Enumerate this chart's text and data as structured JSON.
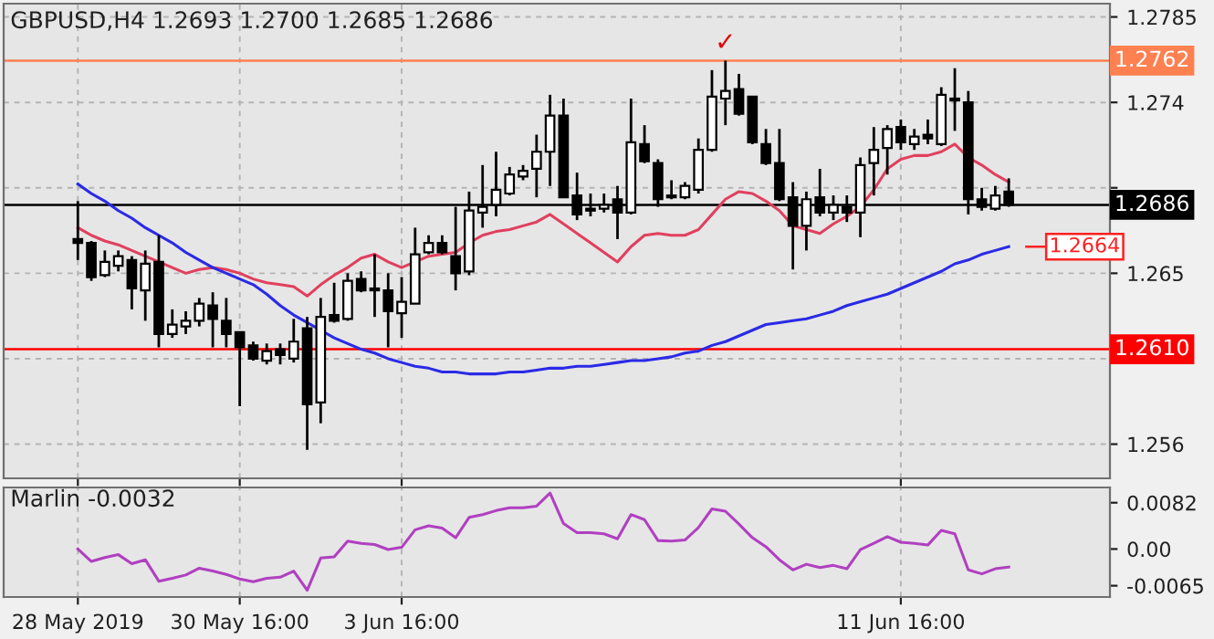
{
  "chart_data": [
    {
      "type": "candlestick",
      "title": "GBPUSD,H4 1.2693 1.2700 1.2685 1.2686",
      "categories": [
        null,
        null,
        null,
        null,
        null,
        null,
        null,
        null,
        null,
        null,
        null,
        null,
        null,
        null,
        null,
        null,
        null,
        null,
        null,
        null,
        null,
        null,
        null,
        null,
        null,
        null,
        null,
        null,
        null,
        null,
        null,
        null,
        null,
        null,
        null,
        null,
        null,
        null,
        null,
        null,
        null,
        null,
        null,
        null,
        null,
        null,
        null,
        null,
        null,
        null,
        null,
        null,
        null,
        null,
        null,
        null,
        null,
        null,
        null,
        null,
        null,
        null,
        null,
        null,
        null,
        null,
        null,
        null,
        null,
        null
      ],
      "ohlc": [
        [
          1.2668,
          1.2688,
          1.2657,
          1.2666
        ],
        [
          1.2666,
          1.2667,
          1.2646,
          1.2648
        ],
        [
          1.2649,
          1.2662,
          1.2648,
          1.2656
        ],
        [
          1.2654,
          1.2662,
          1.2651,
          1.2659
        ],
        [
          1.2657,
          1.2659,
          1.2631,
          1.2642
        ],
        [
          1.2641,
          1.2662,
          1.2625,
          1.2655
        ],
        [
          1.2656,
          1.267,
          1.2611,
          1.2618
        ],
        [
          1.2618,
          1.2631,
          1.2616,
          1.2623
        ],
        [
          1.2622,
          1.263,
          1.2618,
          1.2625
        ],
        [
          1.2625,
          1.2637,
          1.2622,
          1.2634
        ],
        [
          1.2633,
          1.264,
          1.2611,
          1.2626
        ],
        [
          1.2625,
          1.2637,
          1.2611,
          1.2618
        ],
        [
          1.2619,
          1.2619,
          1.258,
          1.2611
        ],
        [
          1.2612,
          1.2614,
          1.2604,
          1.2605
        ],
        [
          1.2604,
          1.2613,
          1.2602,
          1.2609
        ],
        [
          1.261,
          1.2613,
          1.2602,
          1.2607
        ],
        [
          1.2605,
          1.2626,
          1.2603,
          1.2614
        ],
        [
          1.2621,
          1.2627,
          1.2557,
          1.2581
        ],
        [
          1.2582,
          1.2637,
          1.2571,
          1.2627
        ],
        [
          1.2628,
          1.2645,
          1.2624,
          1.2625
        ],
        [
          1.2626,
          1.265,
          1.2625,
          1.2646
        ],
        [
          1.2647,
          1.2651,
          1.264,
          1.2641
        ],
        [
          1.2642,
          1.266,
          1.2627,
          1.2641
        ],
        [
          1.2641,
          1.265,
          1.2611,
          1.263
        ],
        [
          1.2629,
          1.2648,
          1.2616,
          1.2635
        ],
        [
          1.2634,
          1.2674,
          1.2634,
          1.266
        ],
        [
          1.2661,
          1.267,
          1.266,
          1.2666
        ],
        [
          1.2666,
          1.267,
          1.266,
          1.2661
        ],
        [
          1.2659,
          1.2685,
          1.2641,
          1.265
        ],
        [
          1.2651,
          1.2693,
          1.2649,
          1.2683
        ],
        [
          1.2682,
          1.2707,
          1.2674,
          1.2685
        ],
        [
          1.2686,
          1.2714,
          1.268,
          1.2694
        ],
        [
          1.2692,
          1.2706,
          1.2691,
          1.2702
        ],
        [
          1.2701,
          1.2707,
          1.2699,
          1.2704
        ],
        [
          1.2705,
          1.2723,
          1.269,
          1.2714
        ],
        [
          1.2714,
          1.2744,
          1.2696,
          1.2733
        ],
        [
          1.2733,
          1.2742,
          1.269,
          1.269
        ],
        [
          1.2691,
          1.2703,
          1.2678,
          1.2681
        ],
        [
          1.2684,
          1.2692,
          1.268,
          1.2683
        ],
        [
          1.2684,
          1.2692,
          1.2682,
          1.2686
        ],
        [
          1.2689,
          1.2696,
          1.2668,
          1.2682
        ],
        [
          1.2682,
          1.2742,
          1.2681,
          1.2719
        ],
        [
          1.2718,
          1.2728,
          1.2708,
          1.2709
        ],
        [
          1.2708,
          1.271,
          1.2685,
          1.2689
        ],
        [
          1.269,
          1.2699,
          1.2689,
          1.2691
        ],
        [
          1.269,
          1.2698,
          1.2689,
          1.2696
        ],
        [
          1.2694,
          1.2721,
          1.2692,
          1.2715
        ],
        [
          1.2715,
          1.2757,
          1.2714,
          1.2743
        ],
        [
          1.2742,
          1.2762,
          1.2728,
          1.2746
        ],
        [
          1.2747,
          1.2755,
          1.2733,
          1.2734
        ],
        [
          1.2743,
          1.2743,
          1.2718,
          1.2719
        ],
        [
          1.2718,
          1.2726,
          1.2707,
          1.2708
        ],
        [
          1.2708,
          1.2726,
          1.2688,
          1.2689
        ],
        [
          1.269,
          1.2698,
          1.2652,
          1.2675
        ],
        [
          1.2675,
          1.2693,
          1.2662,
          1.2689
        ],
        [
          1.269,
          1.2705,
          1.268,
          1.2682
        ],
        [
          1.2682,
          1.2691,
          1.2678,
          1.2686
        ],
        [
          1.2685,
          1.2691,
          1.2677,
          1.2682
        ],
        [
          1.2682,
          1.2711,
          1.2669,
          1.2707
        ],
        [
          1.2708,
          1.2727,
          1.2691,
          1.2715
        ],
        [
          1.2716,
          1.2728,
          1.2702,
          1.2726
        ],
        [
          1.2727,
          1.2731,
          1.2715,
          1.2719
        ],
        [
          1.2718,
          1.2726,
          1.2715,
          1.2722
        ],
        [
          1.2723,
          1.2731,
          1.2718,
          1.2721
        ],
        [
          1.2718,
          1.2748,
          1.2717,
          1.2744
        ],
        [
          1.2742,
          1.2758,
          1.2725,
          1.2741
        ],
        [
          1.274,
          1.2746,
          1.2681,
          1.2689
        ],
        [
          1.2689,
          1.2695,
          1.2683,
          1.2685
        ],
        [
          1.2684,
          1.2696,
          1.2683,
          1.2691
        ],
        [
          1.2693,
          1.27,
          1.2685,
          1.2686
        ]
      ],
      "series": [
        {
          "type": "line",
          "color": "#e0405e",
          "values": [
            1.2674,
            1.267,
            1.2667,
            1.2665,
            1.2662,
            1.2659,
            1.2656,
            1.2653,
            1.265,
            1.2652,
            1.2653,
            1.2652,
            1.265,
            1.2647,
            1.2645,
            1.2644,
            1.2643,
            1.2638,
            1.2644,
            1.2649,
            1.2653,
            1.2658,
            1.266,
            1.2656,
            1.2653,
            1.2656,
            1.2659,
            1.266,
            1.2661,
            1.2666,
            1.267,
            1.2672,
            1.2673,
            1.2675,
            1.2677,
            1.2681,
            1.2676,
            1.2671,
            1.2666,
            1.2661,
            1.2656,
            1.2664,
            1.267,
            1.2671,
            1.267,
            1.267,
            1.2673,
            1.2681,
            1.2689,
            1.2693,
            1.2692,
            1.2688,
            1.2683,
            1.2675,
            1.2673,
            1.2671,
            1.2676,
            1.268,
            1.2685,
            1.2694,
            1.2705,
            1.271,
            1.2712,
            1.2712,
            1.2714,
            1.2718,
            1.2711,
            1.2707,
            1.2702,
            1.2698
          ]
        },
        {
          "type": "line",
          "color": "#2a2ae6",
          "values": [
            1.2697,
            1.2692,
            1.2688,
            1.2683,
            1.2679,
            1.2674,
            1.267,
            1.2666,
            1.2661,
            1.2657,
            1.2653,
            1.265,
            1.2647,
            1.2644,
            1.2639,
            1.2633,
            1.2628,
            1.2624,
            1.262,
            1.2616,
            1.2613,
            1.261,
            1.2608,
            1.2605,
            1.2603,
            1.2601,
            1.26,
            1.2598,
            1.2598,
            1.2597,
            1.2597,
            1.2597,
            1.2598,
            1.2598,
            1.2599,
            1.26,
            1.26,
            1.2601,
            1.2601,
            1.2602,
            1.2603,
            1.2604,
            1.2604,
            1.2605,
            1.2606,
            1.2608,
            1.2609,
            1.2612,
            1.2614,
            1.2617,
            1.262,
            1.2623,
            1.2624,
            1.2625,
            1.2626,
            1.2628,
            1.263,
            1.2633,
            1.2635,
            1.2637,
            1.2639,
            1.2642,
            1.2645,
            1.2648,
            1.2651,
            1.2655,
            1.2657,
            1.266,
            1.2662,
            1.2664
          ]
        }
      ],
      "ylim": [
        1.2542,
        1.2792
      ],
      "yticks": [
        1.2785,
        1.274,
        {
          "value": 1.2695,
          "label": null
        },
        1.265,
        {
          "value": 1.2605,
          "label": null
        },
        1.256
      ],
      "ref_lines": [
        {
          "axis": "y",
          "value": 1.2762,
          "label": "1.2762",
          "color": "#ff8050"
        },
        {
          "axis": "y",
          "value": 1.261,
          "label": "1.2610",
          "color": "#ff0000"
        },
        {
          "axis": "y",
          "value": 1.2686,
          "label": "1.2686",
          "color": "#000000"
        }
      ],
      "annotations": [
        "✓",
        "1.2664"
      ],
      "grid": true,
      "tick_labels": "y"
    },
    {
      "type": "line",
      "title": "Marlin -0.0032",
      "categories": [
        "28 May 2019",
        null,
        null,
        null,
        null,
        null,
        null,
        null,
        null,
        null,
        null,
        null,
        "30 May 16:00",
        null,
        null,
        null,
        null,
        null,
        null,
        null,
        null,
        null,
        null,
        null,
        "3 Jun 16:00",
        null,
        null,
        null,
        null,
        null,
        null,
        null,
        null,
        null,
        null,
        null,
        null,
        null,
        null,
        null,
        null,
        null,
        null,
        null,
        null,
        null,
        null,
        null,
        null,
        null,
        null,
        null,
        null,
        null,
        null,
        null,
        null,
        null,
        null,
        null,
        null,
        "11 Jun 16:00",
        null,
        null,
        null,
        null,
        null,
        null,
        null,
        null
      ],
      "series": [
        {
          "color": "#b040c0",
          "values": [
            0.0,
            -0.0022,
            -0.0015,
            -0.001,
            -0.0026,
            -0.0019,
            -0.0057,
            -0.0052,
            -0.0046,
            -0.0034,
            -0.0039,
            -0.0045,
            -0.0053,
            -0.0058,
            -0.0052,
            -0.005,
            -0.0039,
            -0.0073,
            -0.0016,
            -0.0014,
            0.0014,
            0.001,
            0.0008,
            -0.0001,
            0.0003,
            0.0034,
            0.0041,
            0.0037,
            0.002,
            0.0056,
            0.0061,
            0.0068,
            0.0073,
            0.0073,
            0.0076,
            0.0099,
            0.0045,
            0.0029,
            0.0029,
            0.0027,
            0.0018,
            0.0061,
            0.0052,
            0.0015,
            0.0014,
            0.0016,
            0.0038,
            0.0071,
            0.0067,
            0.0044,
            0.002,
            0.0004,
            -0.0019,
            -0.0037,
            -0.0027,
            -0.0033,
            -0.0029,
            -0.0035,
            -0.0001,
            0.001,
            0.0022,
            0.0012,
            0.001,
            0.0007,
            0.0033,
            0.0027,
            -0.0037,
            -0.0044,
            -0.0035,
            -0.0032
          ]
        }
      ],
      "ylim": [
        -0.0085,
        0.0109
      ],
      "yticks": [
        0.0082,
        {
          "value": 0,
          "label": "0.00"
        },
        -0.0065
      ],
      "grid": "x"
    }
  ]
}
